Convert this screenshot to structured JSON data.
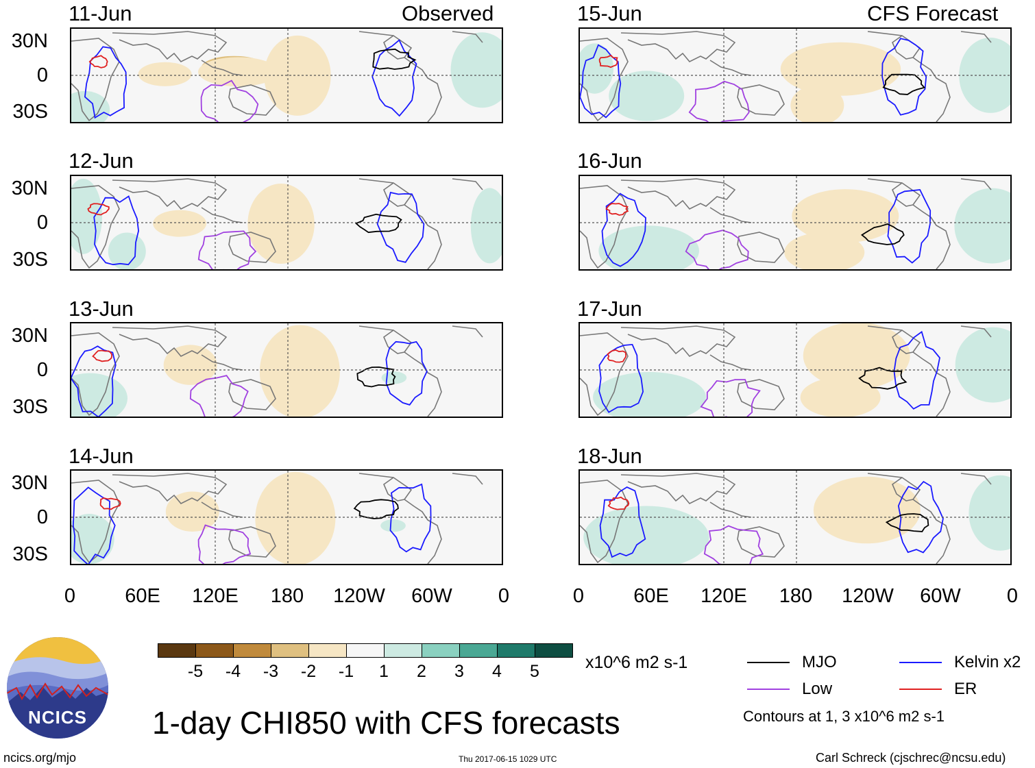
{
  "header": {
    "left_title": "Observed",
    "right_title": "CFS Forecast"
  },
  "panels": {
    "observed": [
      {
        "date": "11-Jun"
      },
      {
        "date": "12-Jun"
      },
      {
        "date": "13-Jun"
      },
      {
        "date": "14-Jun"
      }
    ],
    "forecast": [
      {
        "date": "15-Jun"
      },
      {
        "date": "16-Jun"
      },
      {
        "date": "17-Jun"
      },
      {
        "date": "18-Jun"
      }
    ]
  },
  "axes": {
    "y_labels": [
      "30N",
      "0",
      "30S"
    ],
    "x_labels": [
      "0",
      "60E",
      "120E",
      "180",
      "120W",
      "60W",
      "0"
    ]
  },
  "colorbar": {
    "labels": [
      "-5",
      "-4",
      "-3",
      "-2",
      "-1",
      "1",
      "2",
      "3",
      "4",
      "5"
    ],
    "colors": [
      "#5a3810",
      "#8c5819",
      "#c08a3c",
      "#dfc080",
      "#f6e6c4",
      "#f6f6f6",
      "#cdeae2",
      "#8ad1c0",
      "#4aa894",
      "#1f7a6a",
      "#0e4e42"
    ],
    "units": "x10^6 m2 s-1"
  },
  "legend": {
    "items": [
      {
        "label": "MJO",
        "color": "#000000"
      },
      {
        "label": "Kelvin x2",
        "color": "#1a1aff"
      },
      {
        "label": "Low",
        "color": "#a040e0"
      },
      {
        "label": "ER",
        "color": "#e02020"
      }
    ],
    "contour_note": "Contours at 1, 3 x10^6 m2 s-1"
  },
  "footer": {
    "logo_text": "NCICS",
    "main_title": "1-day CHI850 with CFS forecasts",
    "site": "ncics.org/mjo",
    "timestamp": "Thu 2017-06-15 1029 UTC",
    "author": "Carl Schreck (cjschrec@ncsu.edu)"
  }
}
